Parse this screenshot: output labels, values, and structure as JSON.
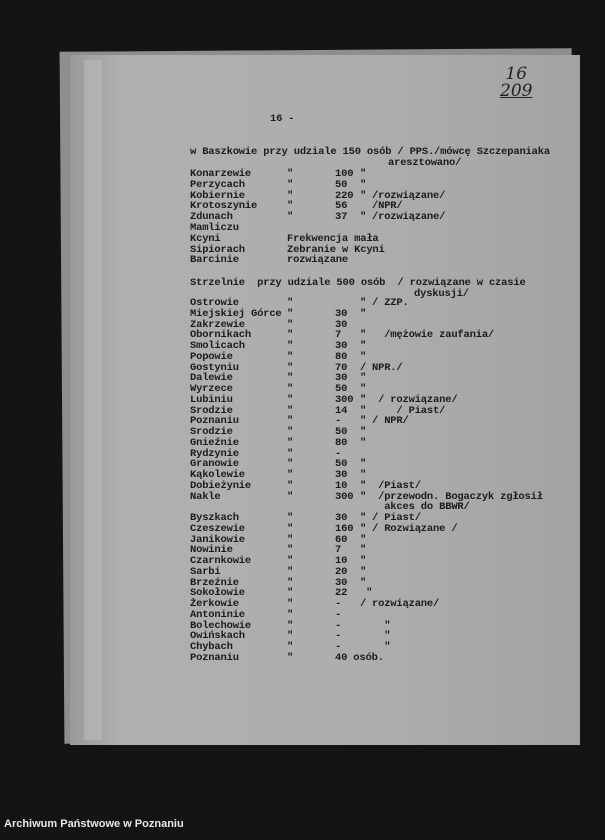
{
  "page_number": "16 -",
  "handwritten_annotation": [
    "16",
    "209"
  ],
  "intro": {
    "line1": "w Baszkowie przy udziale 150 osób / PPS./mówcę Szczepaniaka",
    "line2": "aresztowano/"
  },
  "rows_a": [
    {
      "place": "Konarzewie",
      "ditto": "\"",
      "count": "100",
      "mark": "\"",
      "note": ""
    },
    {
      "place": "Perzycach",
      "ditto": "\"",
      "count": "50",
      "mark": "\"",
      "note": ""
    },
    {
      "place": "Kobiernie",
      "ditto": "\"",
      "count": "220",
      "mark": "\"",
      "note": "/rozwiązane/"
    },
    {
      "place": "Krotoszynie",
      "ditto": "\"",
      "count": "56",
      "mark": "",
      "note": "/NPR/"
    },
    {
      "place": "Zdunach",
      "ditto": "\"",
      "count": "37",
      "mark": "\"",
      "note": "/rozwiązane/"
    },
    {
      "place": "Mamliczu",
      "ditto": "",
      "count": "",
      "mark": "",
      "note": ""
    },
    {
      "place": "Kcyni",
      "ditto": "Frekwencja mała",
      "count": "",
      "mark": "",
      "note": ""
    },
    {
      "place": "Sipiorach",
      "ditto": "Zebranie w Kcyni",
      "count": "",
      "mark": "",
      "note": ""
    },
    {
      "place": "Barcinie",
      "ditto": "rozwiązane",
      "count": "",
      "mark": "",
      "note": ""
    }
  ],
  "strzelno": {
    "line1": "Strzelnie  przy udziale 500 osób  / rozwiązane w czasie",
    "line2": "dyskusji/"
  },
  "rows_b": [
    {
      "place": "Ostrowie",
      "ditto": "\"",
      "count": "",
      "mark": "\"",
      "note": "/ ZZP."
    },
    {
      "place": "Miejskiej Górce",
      "ditto": "\"",
      "count": "30",
      "mark": "\"",
      "note": ""
    },
    {
      "place": "Zakrzewie",
      "ditto": "\"",
      "count": "30",
      "mark": "",
      "note": ""
    },
    {
      "place": "Obornikach",
      "ditto": "\"",
      "count": "7",
      "mark": "\"",
      "note": "  /mężowie zaufania/"
    },
    {
      "place": "Smolicach",
      "ditto": "\"",
      "count": "30",
      "mark": "\"",
      "note": ""
    },
    {
      "place": "Popowie",
      "ditto": "\"",
      "count": "80",
      "mark": "\"",
      "note": ""
    },
    {
      "place": "Gostyniu",
      "ditto": "\"",
      "count": "70",
      "mark": "/",
      "note": "NPR./"
    },
    {
      "place": "Dalewie",
      "ditto": "\"",
      "count": "30",
      "mark": "\"",
      "note": ""
    },
    {
      "place": "Wyrzece",
      "ditto": "\"",
      "count": "50",
      "mark": "\"",
      "note": ""
    },
    {
      "place": "Lubiniu",
      "ditto": "\"",
      "count": "300",
      "mark": "\"",
      "note": " / rozwiązane/"
    },
    {
      "place": "Srodzie",
      "ditto": "\"",
      "count": "14",
      "mark": "\"",
      "note": "    / Piast/"
    },
    {
      "place": "Poznaniu",
      "ditto": "\"",
      "count": "-",
      "mark": "\"",
      "note": "/ NPR/"
    },
    {
      "place": "Srodzie",
      "ditto": "\"",
      "count": "50",
      "mark": "\"",
      "note": ""
    },
    {
      "place": "Gnieźnie",
      "ditto": "\"",
      "count": "80",
      "mark": "\"",
      "note": ""
    },
    {
      "place": "Rydzynie",
      "ditto": "\"",
      "count": "-",
      "mark": "",
      "note": ""
    },
    {
      "place": "Granowie",
      "ditto": "\"",
      "count": "50",
      "mark": "\"",
      "note": ""
    },
    {
      "place": "Kąkolewie",
      "ditto": "\"",
      "count": "30",
      "mark": "\"",
      "note": ""
    },
    {
      "place": "Dobieżynie",
      "ditto": "\"",
      "count": "10",
      "mark": "\"",
      "note": " /Piast/"
    },
    {
      "place": "Nakle",
      "ditto": "\"",
      "count": "300",
      "mark": "\"",
      "note": " /przewodn. Bogaczyk zgłosił"
    },
    {
      "place": "",
      "ditto": "",
      "count": "",
      "mark": "",
      "note": "  akces do BBWR/"
    },
    {
      "place": "Byszkach",
      "ditto": "\"",
      "count": "30",
      "mark": "\"",
      "note": "/ Piast/"
    },
    {
      "place": "Czeszewie",
      "ditto": "\"",
      "count": "160",
      "mark": "\"",
      "note": "/ Rozwiązane /"
    },
    {
      "place": "Janikowie",
      "ditto": "\"",
      "count": "60",
      "mark": "\"",
      "note": ""
    },
    {
      "place": "Nowinie",
      "ditto": "\"",
      "count": "7",
      "mark": "\"",
      "note": ""
    },
    {
      "place": "Czarnkowie",
      "ditto": "\"",
      "count": "10",
      "mark": "\"",
      "note": ""
    },
    {
      "place": "Sarbi",
      "ditto": "\"",
      "count": "20",
      "mark": "\"",
      "note": ""
    },
    {
      "place": "Brzeźnie",
      "ditto": "\"",
      "count": "30",
      "mark": "\"",
      "note": ""
    },
    {
      "place": "Sokołowie",
      "ditto": "\"",
      "count": "22",
      "mark": " \"",
      "note": ""
    },
    {
      "place": "Żerkowie",
      "ditto": "\"",
      "count": "-",
      "mark": "/",
      "note": "rozwiązane/"
    },
    {
      "place": "Antoninie",
      "ditto": "\"",
      "count": "-",
      "mark": "",
      "note": ""
    },
    {
      "place": "Bolechowie",
      "ditto": "\"",
      "count": "-",
      "mark": "",
      "note": "  \""
    },
    {
      "place": "Owińskach",
      "ditto": "\"",
      "count": "-",
      "mark": "",
      "note": "  \""
    },
    {
      "place": "Chybach",
      "ditto": "\"",
      "count": "-",
      "mark": "",
      "note": "  \""
    },
    {
      "place": "Poznaniu",
      "ditto": "\"",
      "count": "40 osób.",
      "mark": "",
      "note": ""
    }
  ],
  "footer": "Archiwum Państwowe w Poznaniu"
}
